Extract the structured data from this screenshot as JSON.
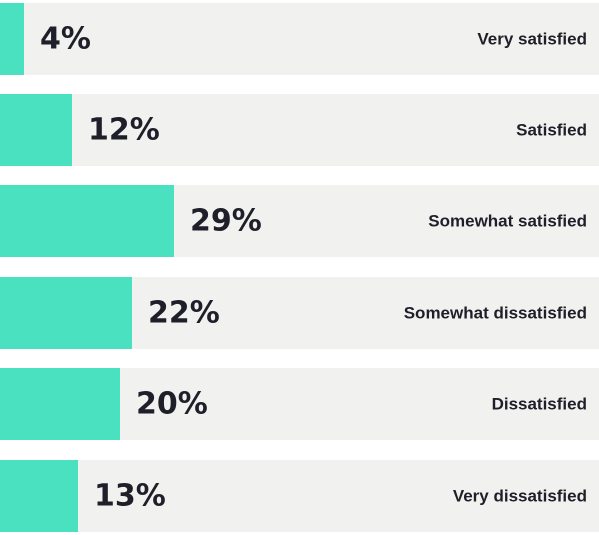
{
  "chart_data": {
    "type": "bar",
    "orientation": "horizontal",
    "categories": [
      "Very satisfied",
      "Satisfied",
      "Somewhat satisfied",
      "Somewhat dissatisfied",
      "Dissatisfied",
      "Very dissatisfied"
    ],
    "values": [
      4,
      12,
      29,
      22,
      20,
      13
    ],
    "value_labels": [
      "4%",
      "12%",
      "29%",
      "22%",
      "20%",
      "13%"
    ],
    "unit": "%",
    "xlim": [
      0,
      100
    ],
    "grid": false,
    "legend": "none",
    "colors": {
      "bar": "#49e1bf",
      "track": "#f1f1ef",
      "text": "#1f1f2a"
    }
  }
}
